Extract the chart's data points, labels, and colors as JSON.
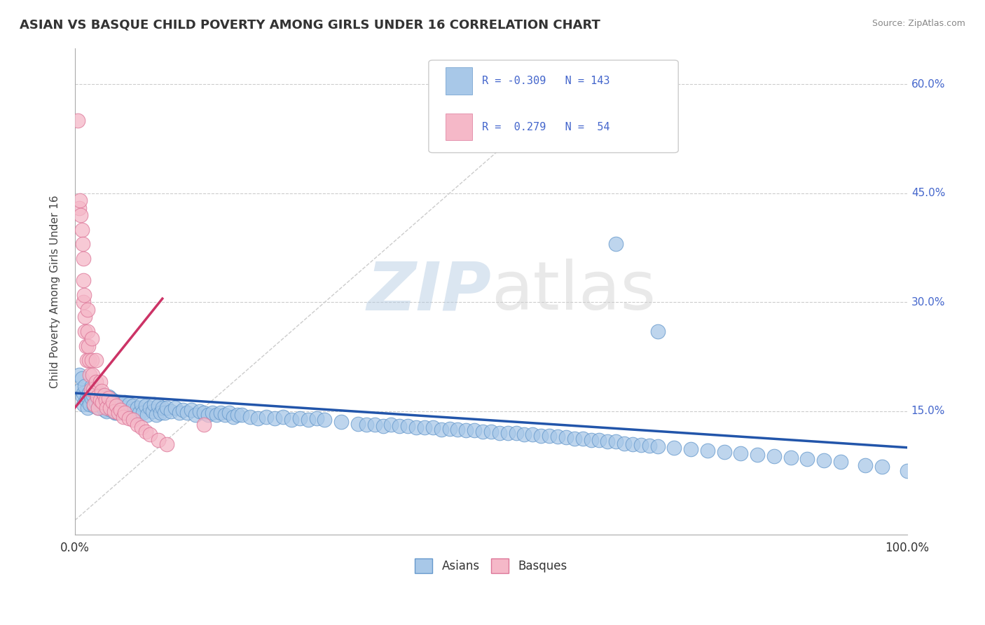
{
  "title": "ASIAN VS BASQUE CHILD POVERTY AMONG GIRLS UNDER 16 CORRELATION CHART",
  "source_text": "Source: ZipAtlas.com",
  "ylabel": "Child Poverty Among Girls Under 16",
  "xlim": [
    0.0,
    1.0
  ],
  "ylim": [
    -0.02,
    0.65
  ],
  "xtick_labels": [
    "0.0%",
    "100.0%"
  ],
  "xtick_positions": [
    0.0,
    1.0
  ],
  "ytick_labels": [
    "15.0%",
    "30.0%",
    "45.0%",
    "60.0%"
  ],
  "ytick_positions": [
    0.15,
    0.3,
    0.45,
    0.6
  ],
  "background_color": "#ffffff",
  "grid_color": "#cccccc",
  "asian_color": "#a8c8e8",
  "asian_edge": "#6699cc",
  "basque_color": "#f5b8c8",
  "basque_edge": "#dd7799",
  "trend_blue": "#2255aa",
  "trend_pink": "#cc3366",
  "ref_line_color": "#cccccc",
  "legend_r1": "R = -0.309",
  "legend_n1": "N = 143",
  "legend_r2": "R =  0.279",
  "legend_n2": "N =  54",
  "legend_text_color": "#4466cc",
  "asian_x": [
    0.005,
    0.007,
    0.008,
    0.009,
    0.01,
    0.01,
    0.012,
    0.013,
    0.015,
    0.015,
    0.017,
    0.018,
    0.02,
    0.02,
    0.022,
    0.023,
    0.025,
    0.025,
    0.027,
    0.028,
    0.03,
    0.03,
    0.032,
    0.033,
    0.035,
    0.035,
    0.037,
    0.038,
    0.04,
    0.04,
    0.042,
    0.043,
    0.045,
    0.047,
    0.048,
    0.05,
    0.05,
    0.053,
    0.055,
    0.057,
    0.058,
    0.06,
    0.062,
    0.065,
    0.067,
    0.07,
    0.072,
    0.075,
    0.077,
    0.08,
    0.082,
    0.085,
    0.087,
    0.09,
    0.093,
    0.095,
    0.098,
    0.1,
    0.103,
    0.105,
    0.108,
    0.11,
    0.115,
    0.12,
    0.125,
    0.13,
    0.135,
    0.14,
    0.145,
    0.15,
    0.155,
    0.16,
    0.165,
    0.17,
    0.175,
    0.18,
    0.185,
    0.19,
    0.195,
    0.2,
    0.21,
    0.22,
    0.23,
    0.24,
    0.25,
    0.26,
    0.27,
    0.28,
    0.29,
    0.3,
    0.32,
    0.34,
    0.35,
    0.36,
    0.37,
    0.38,
    0.39,
    0.4,
    0.41,
    0.42,
    0.43,
    0.44,
    0.45,
    0.46,
    0.47,
    0.48,
    0.49,
    0.5,
    0.51,
    0.52,
    0.53,
    0.54,
    0.55,
    0.56,
    0.57,
    0.58,
    0.59,
    0.6,
    0.61,
    0.62,
    0.63,
    0.64,
    0.65,
    0.66,
    0.67,
    0.68,
    0.69,
    0.7,
    0.72,
    0.74,
    0.76,
    0.78,
    0.8,
    0.82,
    0.84,
    0.86,
    0.88,
    0.9,
    0.92,
    0.95,
    0.97,
    1.0,
    0.65,
    0.7
  ],
  "asian_y": [
    0.2,
    0.18,
    0.195,
    0.17,
    0.175,
    0.16,
    0.185,
    0.165,
    0.17,
    0.155,
    0.175,
    0.16,
    0.185,
    0.168,
    0.172,
    0.158,
    0.178,
    0.162,
    0.168,
    0.155,
    0.175,
    0.16,
    0.172,
    0.158,
    0.168,
    0.152,
    0.165,
    0.15,
    0.17,
    0.155,
    0.168,
    0.152,
    0.165,
    0.155,
    0.148,
    0.162,
    0.148,
    0.155,
    0.16,
    0.148,
    0.155,
    0.162,
    0.148,
    0.16,
    0.15,
    0.158,
    0.145,
    0.155,
    0.148,
    0.16,
    0.148,
    0.158,
    0.145,
    0.155,
    0.15,
    0.16,
    0.145,
    0.158,
    0.148,
    0.155,
    0.148,
    0.155,
    0.15,
    0.155,
    0.148,
    0.152,
    0.148,
    0.152,
    0.145,
    0.15,
    0.148,
    0.145,
    0.148,
    0.145,
    0.148,
    0.145,
    0.148,
    0.142,
    0.145,
    0.145,
    0.142,
    0.14,
    0.142,
    0.14,
    0.142,
    0.138,
    0.14,
    0.138,
    0.14,
    0.138,
    0.135,
    0.133,
    0.132,
    0.132,
    0.13,
    0.132,
    0.13,
    0.13,
    0.128,
    0.128,
    0.128,
    0.125,
    0.126,
    0.125,
    0.124,
    0.124,
    0.122,
    0.122,
    0.12,
    0.12,
    0.12,
    0.118,
    0.118,
    0.116,
    0.116,
    0.115,
    0.114,
    0.112,
    0.112,
    0.11,
    0.11,
    0.108,
    0.108,
    0.106,
    0.105,
    0.104,
    0.103,
    0.102,
    0.1,
    0.098,
    0.096,
    0.094,
    0.092,
    0.09,
    0.088,
    0.086,
    0.084,
    0.082,
    0.08,
    0.076,
    0.074,
    0.068,
    0.38,
    0.26
  ],
  "basque_x": [
    0.003,
    0.005,
    0.006,
    0.007,
    0.008,
    0.009,
    0.01,
    0.01,
    0.01,
    0.011,
    0.012,
    0.012,
    0.013,
    0.014,
    0.015,
    0.015,
    0.016,
    0.017,
    0.018,
    0.019,
    0.02,
    0.02,
    0.021,
    0.022,
    0.023,
    0.025,
    0.025,
    0.027,
    0.028,
    0.03,
    0.03,
    0.032,
    0.033,
    0.035,
    0.037,
    0.038,
    0.04,
    0.042,
    0.045,
    0.047,
    0.05,
    0.052,
    0.055,
    0.058,
    0.06,
    0.065,
    0.07,
    0.075,
    0.08,
    0.085,
    0.09,
    0.1,
    0.11,
    0.155
  ],
  "basque_y": [
    0.55,
    0.43,
    0.44,
    0.42,
    0.4,
    0.38,
    0.36,
    0.33,
    0.3,
    0.31,
    0.28,
    0.26,
    0.24,
    0.22,
    0.29,
    0.26,
    0.24,
    0.22,
    0.2,
    0.18,
    0.25,
    0.22,
    0.2,
    0.18,
    0.16,
    0.22,
    0.19,
    0.17,
    0.155,
    0.19,
    0.165,
    0.178,
    0.162,
    0.172,
    0.165,
    0.155,
    0.168,
    0.155,
    0.162,
    0.15,
    0.158,
    0.148,
    0.152,
    0.142,
    0.148,
    0.14,
    0.138,
    0.132,
    0.128,
    0.122,
    0.118,
    0.11,
    0.105,
    0.132
  ],
  "blue_trend_x": [
    0.0,
    1.0
  ],
  "blue_trend_y": [
    0.175,
    0.1
  ],
  "pink_trend_x": [
    0.0,
    0.105
  ],
  "pink_trend_y": [
    0.155,
    0.305
  ],
  "ref_line_x": [
    0.0,
    0.6
  ],
  "ref_line_y": [
    0.0,
    0.6
  ]
}
